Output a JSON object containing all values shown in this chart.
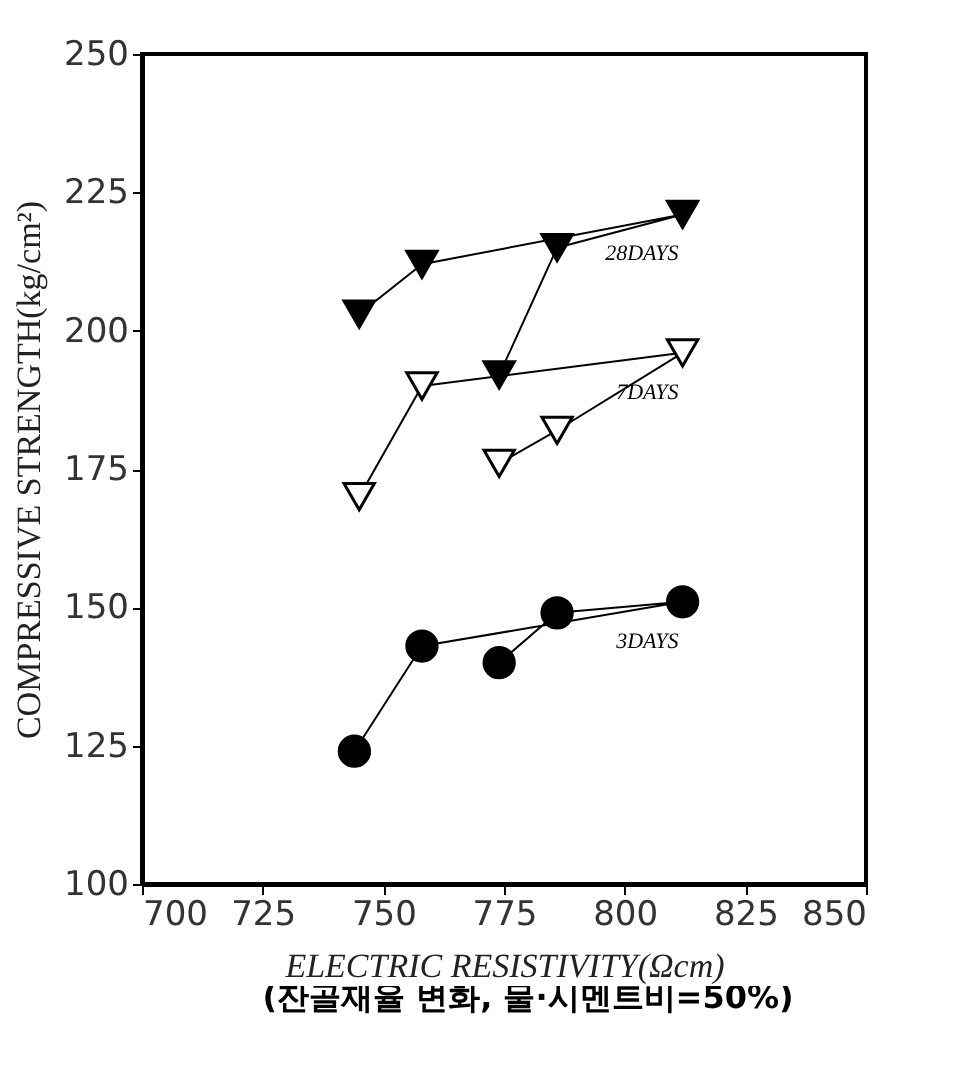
{
  "chart_data": {
    "type": "line",
    "xlabel": "ELECTRIC RESISTIVITY(Ωcm)",
    "ylabel": "COMPRESSIVE STRENGTH(kg/cm²)",
    "annotations": [
      "(잔골재율 변화, 물·시멘트비=50%)"
    ],
    "xlim": [
      700,
      850
    ],
    "xticks": [
      700,
      725,
      750,
      775,
      800,
      825,
      850
    ],
    "ylim": [
      100,
      250
    ],
    "yticks": [
      100,
      125,
      150,
      175,
      200,
      225,
      250
    ],
    "grid": false,
    "series": [
      {
        "name": "28DAYS",
        "color": "#000000",
        "marker": "triangle",
        "x": [
          745,
          758,
          812,
          786,
          774
        ],
        "values": [
          203,
          212,
          221,
          215,
          192
        ]
      },
      {
        "name": "7DAYS",
        "color": "#ffffff",
        "marker": "triangle",
        "x": [
          745,
          758,
          812,
          786,
          774
        ],
        "values": [
          170,
          190,
          196,
          182,
          176
        ]
      },
      {
        "name": "3DAYS",
        "color": "#000000",
        "marker": "circle",
        "x": [
          744,
          758,
          812,
          786,
          774
        ],
        "values": [
          124,
          143,
          151,
          149,
          140
        ]
      }
    ]
  }
}
